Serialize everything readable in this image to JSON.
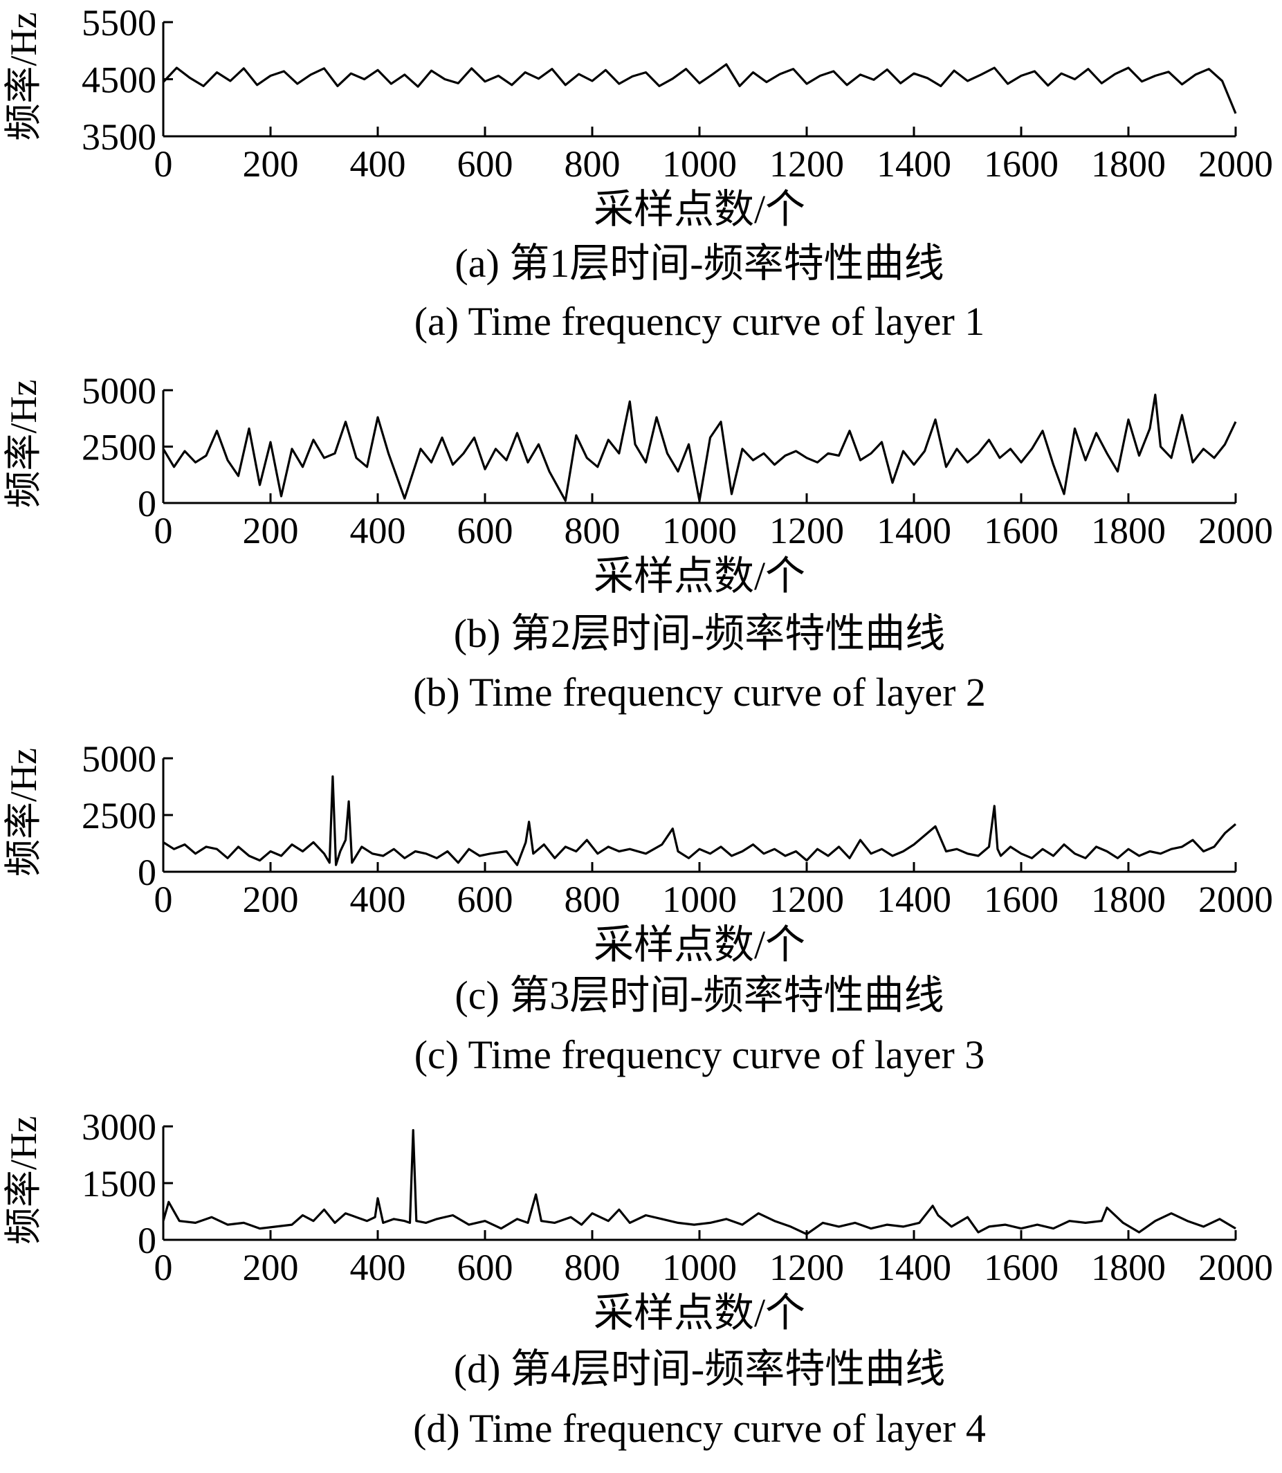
{
  "chart_data": [
    {
      "type": "line",
      "panel": "a",
      "ylabel": "频率/Hz",
      "xlabel": "采样点数/个",
      "caption_zh": "(a) 第1层时间-频率特性曲线",
      "caption_en": "(a) Time frequency curve of  layer 1",
      "xlim": [
        0,
        2000
      ],
      "ylim": [
        3500,
        5500
      ],
      "xticks": [
        "0",
        "200",
        "400",
        "600",
        "800",
        "1000",
        "1200",
        "1400",
        "1600",
        "1800",
        "2000"
      ],
      "yticks": [
        "3500",
        "4500",
        "5500"
      ],
      "grid": false,
      "series": [
        {
          "x": [
            0,
            25,
            50,
            75,
            100,
            125,
            150,
            175,
            200,
            225,
            250,
            275,
            300,
            325,
            350,
            375,
            400,
            425,
            450,
            475,
            500,
            525,
            550,
            575,
            600,
            625,
            650,
            675,
            700,
            725,
            750,
            775,
            800,
            825,
            850,
            875,
            900,
            925,
            950,
            975,
            1000,
            1025,
            1050,
            1075,
            1100,
            1125,
            1150,
            1175,
            1200,
            1225,
            1250,
            1275,
            1300,
            1325,
            1350,
            1375,
            1400,
            1425,
            1450,
            1475,
            1500,
            1525,
            1550,
            1575,
            1600,
            1625,
            1650,
            1675,
            1700,
            1725,
            1750,
            1775,
            1800,
            1825,
            1850,
            1875,
            1900,
            1925,
            1950,
            1975,
            2000
          ],
          "values": [
            4450,
            4700,
            4520,
            4380,
            4620,
            4470,
            4690,
            4400,
            4560,
            4640,
            4420,
            4580,
            4690,
            4380,
            4600,
            4500,
            4660,
            4420,
            4580,
            4370,
            4650,
            4500,
            4430,
            4690,
            4460,
            4560,
            4400,
            4620,
            4510,
            4680,
            4400,
            4590,
            4470,
            4660,
            4420,
            4550,
            4620,
            4380,
            4510,
            4680,
            4430,
            4590,
            4760,
            4380,
            4620,
            4450,
            4590,
            4680,
            4420,
            4560,
            4640,
            4400,
            4580,
            4490,
            4670,
            4430,
            4600,
            4520,
            4380,
            4650,
            4470,
            4580,
            4700,
            4420,
            4560,
            4640,
            4390,
            4600,
            4500,
            4680,
            4430,
            4590,
            4700,
            4460,
            4560,
            4630,
            4410,
            4580,
            4680,
            4470,
            3900
          ]
        }
      ]
    },
    {
      "type": "line",
      "panel": "b",
      "ylabel": "频率/Hz",
      "xlabel": "采样点数/个",
      "caption_zh": "(b) 第2层时间-频率特性曲线",
      "caption_en": "(b) Time frequency curve of  layer 2",
      "xlim": [
        0,
        2000
      ],
      "ylim": [
        0,
        5000
      ],
      "xticks": [
        "0",
        "200",
        "400",
        "600",
        "800",
        "1000",
        "1200",
        "1400",
        "1600",
        "1800",
        "2000"
      ],
      "yticks": [
        "0",
        "2500",
        "5000"
      ],
      "grid": false,
      "series": [
        {
          "x": [
            0,
            20,
            40,
            60,
            80,
            100,
            120,
            140,
            160,
            180,
            200,
            220,
            240,
            260,
            280,
            300,
            320,
            340,
            360,
            380,
            400,
            420,
            450,
            480,
            500,
            520,
            540,
            560,
            580,
            600,
            620,
            640,
            660,
            680,
            700,
            720,
            750,
            770,
            790,
            810,
            830,
            850,
            870,
            880,
            900,
            920,
            940,
            960,
            980,
            1000,
            1020,
            1040,
            1060,
            1080,
            1100,
            1120,
            1140,
            1160,
            1180,
            1200,
            1220,
            1240,
            1260,
            1280,
            1300,
            1320,
            1340,
            1360,
            1380,
            1400,
            1420,
            1440,
            1460,
            1480,
            1500,
            1520,
            1540,
            1560,
            1580,
            1600,
            1620,
            1640,
            1660,
            1680,
            1700,
            1720,
            1740,
            1760,
            1780,
            1800,
            1820,
            1840,
            1850,
            1860,
            1880,
            1900,
            1920,
            1940,
            1960,
            1980,
            2000
          ],
          "values": [
            2400,
            1600,
            2300,
            1800,
            2100,
            3200,
            1900,
            1200,
            3300,
            800,
            2700,
            300,
            2400,
            1600,
            2800,
            2000,
            2200,
            3600,
            2000,
            1600,
            3800,
            2200,
            200,
            2400,
            1800,
            2900,
            1700,
            2200,
            2900,
            1500,
            2400,
            1900,
            3100,
            1800,
            2600,
            1400,
            100,
            3000,
            2000,
            1600,
            2800,
            2200,
            4500,
            2600,
            1800,
            3800,
            2200,
            1400,
            2600,
            100,
            2900,
            3600,
            400,
            2400,
            1900,
            2200,
            1700,
            2100,
            2300,
            2000,
            1800,
            2200,
            2100,
            3200,
            1900,
            2200,
            2700,
            900,
            2300,
            1700,
            2300,
            3700,
            1600,
            2400,
            1800,
            2200,
            2800,
            2000,
            2400,
            1800,
            2400,
            3200,
            1700,
            400,
            3300,
            1900,
            3100,
            2200,
            1400,
            3700,
            2100,
            3300,
            4800,
            2500,
            2000,
            3900,
            1800,
            2400,
            2000,
            2600,
            3600
          ]
        }
      ]
    },
    {
      "type": "line",
      "panel": "c",
      "ylabel": "频率/Hz",
      "xlabel": "采样点数/个",
      "caption_zh": "(c) 第3层时间-频率特性曲线",
      "caption_en": "(c) Time frequency curve of  layer 3",
      "xlim": [
        0,
        2000
      ],
      "ylim": [
        0,
        5000
      ],
      "xticks": [
        "0",
        "200",
        "400",
        "600",
        "800",
        "1000",
        "1200",
        "1400",
        "1600",
        "1800",
        "2000"
      ],
      "yticks": [
        "0",
        "2500",
        "5000"
      ],
      "grid": false,
      "series": [
        {
          "x": [
            0,
            20,
            40,
            60,
            80,
            100,
            120,
            140,
            160,
            180,
            200,
            220,
            240,
            260,
            280,
            300,
            310,
            316,
            322,
            330,
            340,
            346,
            352,
            370,
            390,
            410,
            430,
            450,
            470,
            490,
            510,
            530,
            550,
            570,
            590,
            610,
            640,
            660,
            676,
            682,
            690,
            710,
            730,
            750,
            770,
            790,
            810,
            830,
            850,
            870,
            900,
            930,
            950,
            960,
            980,
            1000,
            1020,
            1040,
            1060,
            1080,
            1100,
            1120,
            1140,
            1160,
            1180,
            1200,
            1220,
            1240,
            1260,
            1280,
            1300,
            1320,
            1340,
            1360,
            1380,
            1400,
            1420,
            1440,
            1460,
            1480,
            1500,
            1520,
            1540,
            1550,
            1556,
            1562,
            1580,
            1600,
            1620,
            1640,
            1660,
            1680,
            1700,
            1720,
            1740,
            1760,
            1780,
            1800,
            1820,
            1840,
            1860,
            1880,
            1900,
            1920,
            1940,
            1960,
            1980,
            2000
          ],
          "values": [
            1300,
            1000,
            1200,
            800,
            1100,
            1000,
            600,
            1100,
            700,
            500,
            900,
            700,
            1200,
            900,
            1300,
            800,
            400,
            4200,
            300,
            900,
            1400,
            3100,
            400,
            1100,
            800,
            700,
            1000,
            600,
            900,
            800,
            600,
            900,
            400,
            1000,
            700,
            800,
            900,
            300,
            1300,
            2200,
            800,
            1200,
            600,
            1100,
            900,
            1400,
            800,
            1100,
            900,
            1000,
            800,
            1200,
            1900,
            900,
            600,
            1000,
            800,
            1100,
            700,
            900,
            1200,
            800,
            1000,
            700,
            900,
            500,
            1000,
            700,
            1100,
            600,
            1400,
            800,
            1000,
            700,
            900,
            1200,
            1600,
            2000,
            900,
            1000,
            800,
            700,
            1100,
            2900,
            1000,
            700,
            1100,
            800,
            600,
            1000,
            700,
            1200,
            800,
            600,
            1100,
            900,
            600,
            1000,
            700,
            900,
            800,
            1000,
            1100,
            1400,
            900,
            1100,
            1700,
            2100
          ]
        }
      ]
    },
    {
      "type": "line",
      "panel": "d",
      "ylabel": "频率/Hz",
      "xlabel": "采样点数/个",
      "caption_zh": "(d) 第4层时间-频率特性曲线",
      "caption_en": "(d) Time frequency curve of  layer 4",
      "xlim": [
        0,
        2000
      ],
      "ylim": [
        0,
        3000
      ],
      "xticks": [
        "0",
        "200",
        "400",
        "600",
        "800",
        "1000",
        "1200",
        "1400",
        "1600",
        "1800",
        "2000"
      ],
      "yticks": [
        "0",
        "1500",
        "3000"
      ],
      "grid": false,
      "series": [
        {
          "x": [
            0,
            10,
            30,
            60,
            90,
            120,
            150,
            180,
            210,
            240,
            260,
            280,
            300,
            320,
            340,
            360,
            380,
            395,
            400,
            410,
            430,
            450,
            460,
            466,
            472,
            490,
            510,
            540,
            570,
            600,
            630,
            660,
            680,
            695,
            705,
            730,
            760,
            780,
            800,
            830,
            850,
            870,
            900,
            930,
            960,
            990,
            1020,
            1050,
            1080,
            1110,
            1140,
            1170,
            1200,
            1230,
            1260,
            1290,
            1320,
            1350,
            1380,
            1410,
            1435,
            1445,
            1470,
            1500,
            1520,
            1540,
            1570,
            1600,
            1630,
            1660,
            1690,
            1720,
            1750,
            1760,
            1790,
            1820,
            1850,
            1880,
            1910,
            1940,
            1970,
            2000
          ],
          "values": [
            500,
            1000,
            500,
            450,
            600,
            400,
            450,
            300,
            350,
            400,
            650,
            500,
            800,
            450,
            700,
            600,
            500,
            600,
            1100,
            450,
            550,
            500,
            450,
            2900,
            500,
            450,
            550,
            650,
            400,
            500,
            300,
            550,
            450,
            1200,
            500,
            450,
            600,
            400,
            700,
            500,
            800,
            450,
            650,
            550,
            450,
            400,
            450,
            550,
            400,
            700,
            500,
            350,
            150,
            450,
            350,
            450,
            300,
            400,
            350,
            450,
            900,
            650,
            350,
            600,
            200,
            350,
            400,
            300,
            400,
            300,
            500,
            450,
            500,
            850,
            450,
            200,
            500,
            700,
            500,
            350,
            550,
            300
          ]
        }
      ]
    }
  ]
}
